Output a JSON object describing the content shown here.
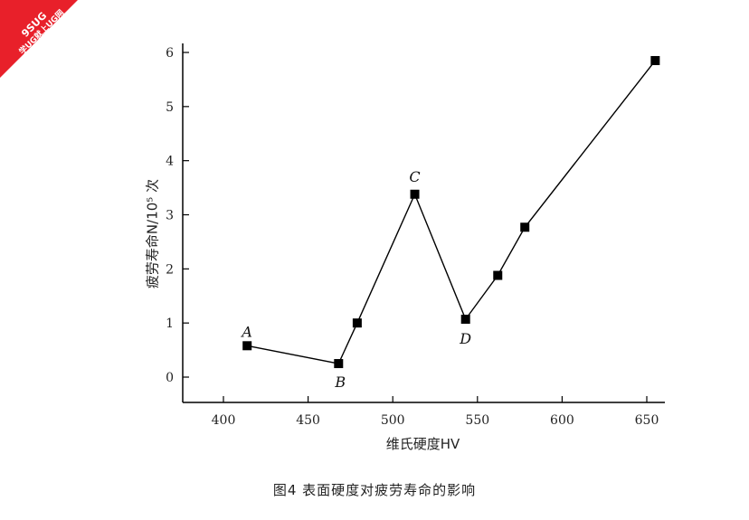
{
  "watermark": {
    "line1": "9SUG",
    "line2": "学UG就上UG网"
  },
  "caption": "图4   表面硬度对疲劳寿命的影响",
  "chart_data": {
    "type": "line",
    "title": "",
    "xlabel": "维氏硬度HV",
    "ylabel": "疲劳寿命N/10⁵ 次",
    "xlim": [
      375,
      655
    ],
    "ylim": [
      -0.5,
      6.2
    ],
    "xticks": [
      400,
      450,
      500,
      550,
      600,
      650
    ],
    "yticks": [
      0,
      1,
      2,
      3,
      4,
      5,
      6
    ],
    "grid": false,
    "series": [
      {
        "marker": "square",
        "color": "#000000",
        "points": [
          {
            "x": 414,
            "y": 0.58,
            "label": "A"
          },
          {
            "x": 468,
            "y": 0.25,
            "label": "B"
          },
          {
            "x": 479,
            "y": 1.0,
            "label": ""
          },
          {
            "x": 513,
            "y": 3.38,
            "label": "C"
          },
          {
            "x": 543,
            "y": 1.07,
            "label": "D"
          },
          {
            "x": 562,
            "y": 1.88,
            "label": ""
          },
          {
            "x": 578,
            "y": 2.77,
            "label": ""
          },
          {
            "x": 655,
            "y": 5.85,
            "label": ""
          }
        ]
      }
    ]
  }
}
